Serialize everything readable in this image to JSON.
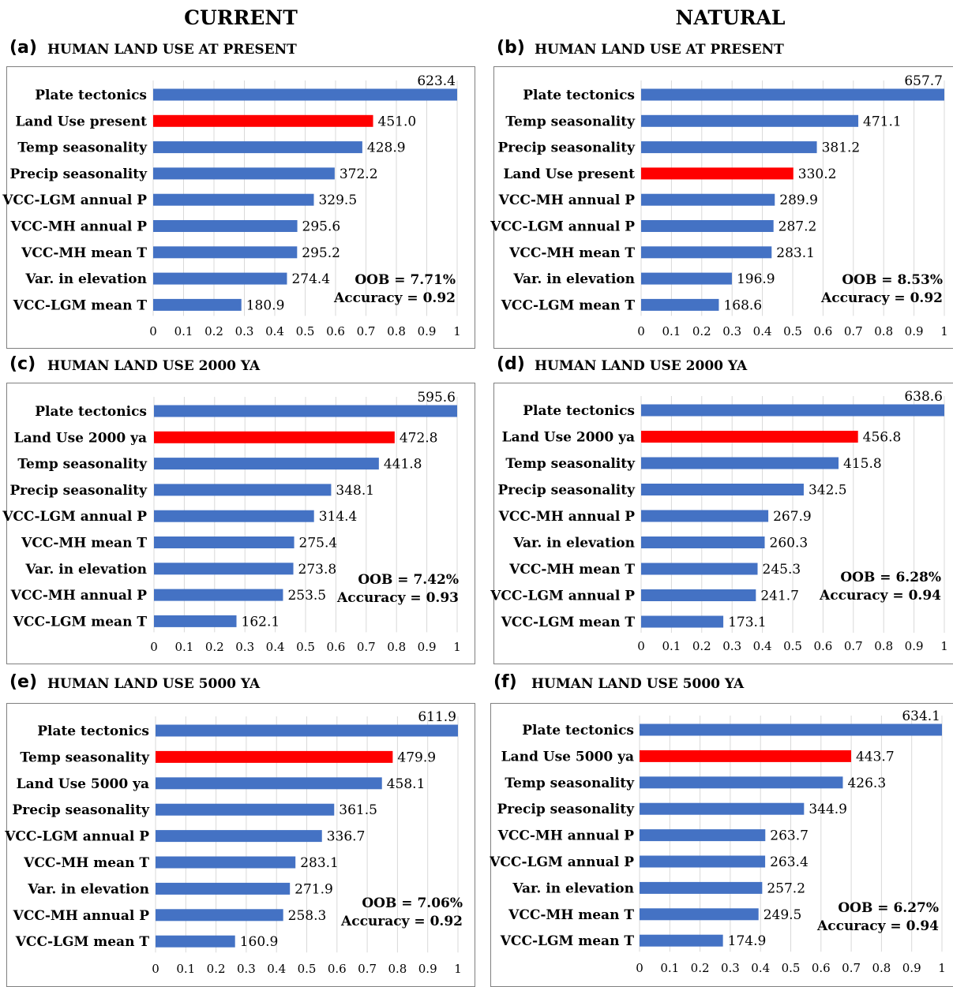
{
  "columns": {
    "left": "CURRENT",
    "right": "NATURAL"
  },
  "colors": {
    "bar": "#4472C4",
    "highlight": "#FF0000",
    "grid": "#D9D9D9"
  },
  "xticks": [
    "0",
    "0.1",
    "0.2",
    "0.3",
    "0.4",
    "0.5",
    "0.6",
    "0.7",
    "0.8",
    "0.9",
    "1"
  ],
  "chart_data": [
    {
      "id": "a",
      "label": "(a)",
      "title": "HUMAN LAND USE AT PRESENT",
      "type": "bar",
      "xlim": [
        0,
        1
      ],
      "grid": true,
      "highlight": "Land Use present",
      "oob": "OOB = 7.71%",
      "accuracy": "Accuracy = 0.92",
      "categories": [
        "Plate tectonics",
        "Land Use present",
        "Temp seasonality",
        "Precip seasonality",
        "VCC-LGM annual P",
        "VCC-MH annual P",
        "VCC-MH mean T",
        "Var. in elevation",
        "VCC-LGM mean T"
      ],
      "values": [
        623.4,
        451.0,
        428.9,
        372.2,
        329.5,
        295.6,
        295.2,
        274.4,
        180.9
      ],
      "labels": [
        "623.4",
        "451.0",
        "428.9",
        "372.2",
        "329.5",
        "295.6",
        "295.2",
        "274.4",
        "180.9"
      ]
    },
    {
      "id": "b",
      "label": "(b)",
      "title": "HUMAN LAND USE AT PRESENT",
      "type": "bar",
      "xlim": [
        0,
        1
      ],
      "grid": true,
      "highlight": "Land Use present",
      "oob": "OOB = 8.53%",
      "accuracy": "Accuracy = 0.92",
      "categories": [
        "Plate tectonics",
        "Temp seasonality",
        "Precip seasonality",
        "Land Use present",
        "VCC-MH annual P",
        "VCC-LGM annual P",
        "VCC-MH mean T",
        "Var. in elevation",
        "VCC-LGM mean T"
      ],
      "values": [
        657.7,
        471.1,
        381.2,
        330.2,
        289.9,
        287.2,
        283.1,
        196.9,
        168.6
      ],
      "labels": [
        "657.7",
        "471.1",
        "381.2",
        "330.2",
        "289.9",
        "287.2",
        "283.1",
        "196.9",
        "168.6"
      ]
    },
    {
      "id": "c",
      "label": "(c)",
      "title": "HUMAN LAND USE 2000 YA",
      "type": "bar",
      "xlim": [
        0,
        1
      ],
      "grid": true,
      "highlight": "Land Use 2000 ya",
      "oob": "OOB = 7.42%",
      "accuracy": "Accuracy = 0.93",
      "categories": [
        "Plate tectonics",
        "Land Use 2000 ya",
        "Temp seasonality",
        "Precip seasonality",
        "VCC-LGM annual P",
        "VCC-MH mean T",
        "Var. in elevation",
        "VCC-MH annual P",
        "VCC-LGM mean T"
      ],
      "values": [
        595.6,
        472.8,
        441.8,
        348.1,
        314.4,
        275.4,
        273.8,
        253.5,
        162.1
      ],
      "labels": [
        "595.6",
        "472.8",
        "441.8",
        "348.1",
        "314.4",
        "275.4",
        "273.8",
        "253.5",
        "162.1"
      ]
    },
    {
      "id": "d",
      "label": "(d)",
      "title": "HUMAN LAND USE 2000 YA",
      "type": "bar",
      "xlim": [
        0,
        1
      ],
      "grid": true,
      "highlight": "Land Use 2000 ya",
      "oob": "OOB = 6.28%",
      "accuracy": "Accuracy = 0.94",
      "categories": [
        "Plate tectonics",
        "Land Use 2000 ya",
        "Temp seasonality",
        "Precip seasonality",
        "VCC-MH annual P",
        "Var. in elevation",
        "VCC-MH mean T",
        "VCC-LGM annual P",
        "VCC-LGM mean T"
      ],
      "values": [
        638.6,
        456.8,
        415.8,
        342.5,
        267.9,
        260.3,
        245.3,
        241.7,
        173.1
      ],
      "labels": [
        "638.6",
        "456.8",
        "415.8",
        "342.5",
        "267.9",
        "260.3",
        "245.3",
        "241.7",
        "173.1"
      ]
    },
    {
      "id": "e",
      "label": "(e)",
      "title": "HUMAN LAND USE 5000 YA",
      "type": "bar",
      "xlim": [
        0,
        1
      ],
      "grid": true,
      "highlight": "Temp seasonality",
      "oob": "OOB = 7.06%",
      "accuracy": "Accuracy = 0.92",
      "categories": [
        "Plate tectonics",
        "Temp seasonality",
        "Land Use 5000 ya",
        "Precip seasonality",
        "VCC-LGM annual P",
        "VCC-MH mean T",
        "Var. in elevation",
        "VCC-MH annual P",
        "VCC-LGM mean T"
      ],
      "values": [
        611.9,
        479.9,
        458.1,
        361.5,
        336.7,
        283.1,
        271.9,
        258.3,
        160.9
      ],
      "labels": [
        "611.9",
        "479.9",
        "458.1",
        "361.5",
        "336.7",
        "283.1",
        "271.9",
        "258.3",
        "160.9"
      ]
    },
    {
      "id": "f",
      "label": "(f)",
      "title": "HUMAN LAND USE 5000 YA",
      "type": "bar",
      "xlim": [
        0,
        1
      ],
      "grid": true,
      "highlight": "Land Use 5000 ya",
      "oob": "OOB = 6.27%",
      "accuracy": "Accuracy = 0.94",
      "categories": [
        "Plate tectonics",
        "Land Use 5000 ya",
        "Temp seasonality",
        "Precip seasonality",
        "VCC-MH annual P",
        "VCC-LGM annual P",
        "Var. in elevation",
        "VCC-MH mean T",
        "VCC-LGM mean T"
      ],
      "values": [
        634.1,
        443.7,
        426.3,
        344.9,
        263.7,
        263.4,
        257.2,
        249.5,
        174.9
      ],
      "labels": [
        "634.1",
        "443.7",
        "426.3",
        "344.9",
        "263.7",
        "263.4",
        "257.2",
        "249.5",
        "174.9"
      ]
    }
  ]
}
